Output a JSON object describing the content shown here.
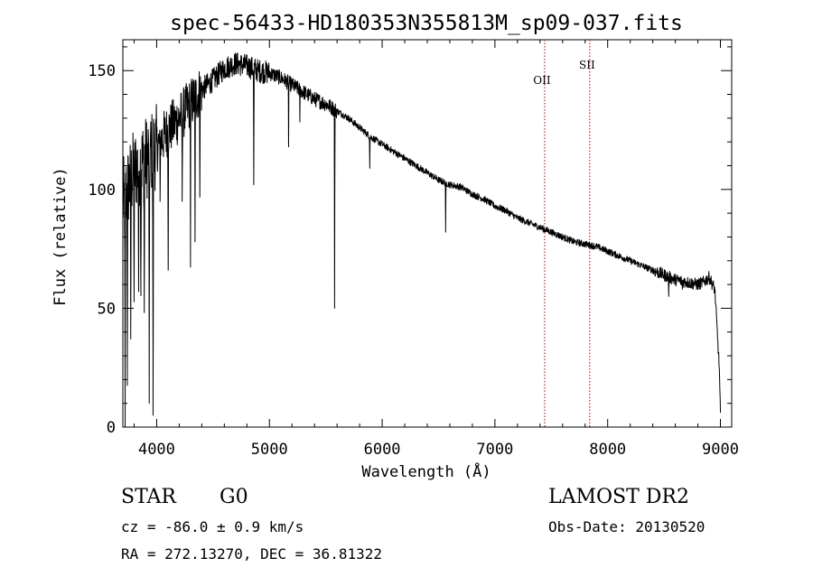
{
  "chart_data": {
    "type": "line",
    "title": "spec-56433-HD180353N355813M_sp09-037.fits",
    "xlabel": "Wavelength (Å)",
    "ylabel": "Flux (relative)",
    "xlim": [
      3700,
      9100
    ],
    "ylim": [
      0,
      163
    ],
    "xticks": [
      4000,
      5000,
      6000,
      7000,
      8000,
      9000
    ],
    "xtick_labels": [
      "4000",
      "5000",
      "6000",
      "7000",
      "8000",
      "9000"
    ],
    "yticks": [
      0,
      50,
      100,
      150
    ],
    "ytick_labels": [
      "0",
      "50",
      "100",
      "150"
    ],
    "grid": false,
    "series": [
      {
        "line_color": "#000000",
        "continuum": [
          [
            3700,
            95
          ],
          [
            3800,
            108
          ],
          [
            3900,
            113
          ],
          [
            4000,
            118
          ],
          [
            4100,
            125
          ],
          [
            4200,
            130
          ],
          [
            4300,
            136
          ],
          [
            4400,
            142
          ],
          [
            4500,
            146
          ],
          [
            4600,
            151
          ],
          [
            4700,
            153
          ],
          [
            4800,
            152
          ],
          [
            4900,
            150
          ],
          [
            5000,
            149
          ],
          [
            5100,
            147
          ],
          [
            5200,
            144
          ],
          [
            5300,
            141
          ],
          [
            5400,
            138
          ],
          [
            5500,
            136
          ],
          [
            5600,
            133
          ],
          [
            5700,
            130
          ],
          [
            5800,
            126
          ],
          [
            5900,
            122
          ],
          [
            6000,
            119
          ],
          [
            6100,
            116
          ],
          [
            6200,
            113
          ],
          [
            6300,
            110
          ],
          [
            6400,
            107
          ],
          [
            6500,
            104
          ],
          [
            6600,
            102
          ],
          [
            6700,
            101
          ],
          [
            6800,
            98
          ],
          [
            6900,
            96
          ],
          [
            7000,
            93
          ],
          [
            7100,
            91
          ],
          [
            7200,
            88
          ],
          [
            7300,
            86
          ],
          [
            7400,
            84
          ],
          [
            7500,
            82
          ],
          [
            7600,
            80
          ],
          [
            7700,
            78
          ],
          [
            7800,
            77
          ],
          [
            7900,
            76
          ],
          [
            8000,
            74
          ],
          [
            8100,
            72
          ],
          [
            8200,
            70
          ],
          [
            8300,
            68
          ],
          [
            8400,
            66
          ],
          [
            8500,
            64
          ],
          [
            8600,
            62
          ],
          [
            8700,
            61
          ],
          [
            8800,
            60
          ],
          [
            8850,
            61
          ],
          [
            8900,
            63
          ],
          [
            8950,
            58
          ],
          [
            8990,
            25
          ],
          [
            9000,
            5
          ]
        ],
        "absorption_lines": [
          [
            3720,
            0
          ],
          [
            3740,
            28
          ],
          [
            3770,
            40
          ],
          [
            3800,
            55
          ],
          [
            3840,
            60
          ],
          [
            3860,
            63
          ],
          [
            3890,
            50
          ],
          [
            3934,
            10
          ],
          [
            3968,
            5
          ],
          [
            4030,
            95
          ],
          [
            4102,
            66
          ],
          [
            4226,
            95
          ],
          [
            4300,
            72
          ],
          [
            4340,
            78
          ],
          [
            4383,
            100
          ],
          [
            4861,
            102
          ],
          [
            5170,
            120
          ],
          [
            5270,
            130
          ],
          [
            5578,
            50
          ],
          [
            5890,
            110
          ],
          [
            6563,
            82
          ],
          [
            8542,
            55
          ],
          [
            8662,
            58
          ]
        ]
      }
    ],
    "annotations": [
      {
        "label": "OII",
        "x": 7441,
        "line_color": "#b00000"
      },
      {
        "label": "SII",
        "x": 7841,
        "line_color": "#b00000"
      }
    ]
  },
  "info": {
    "object_class": "STAR",
    "subclass": "G0",
    "survey": "LAMOST DR2",
    "velocity": "cz = -86.0 ± 0.9 km/s",
    "obs_date": "Obs-Date: 20130520",
    "coords": "RA = 272.13270, DEC =  36.81322"
  }
}
